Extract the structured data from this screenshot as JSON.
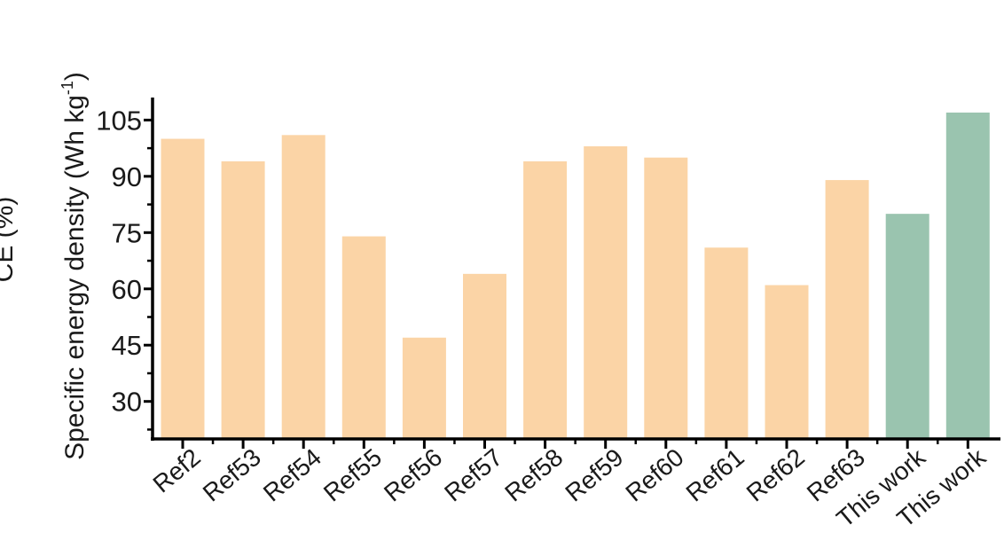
{
  "chart_data": {
    "type": "bar",
    "title": "",
    "xlabel": "",
    "ylabel": {
      "main": "Specific energy density (Wh kg",
      "sup": "-1",
      "close": ")"
    },
    "left_cut_label": "CE (%)",
    "categories": [
      "Ref2",
      "Ref53",
      "Ref54",
      "Ref55",
      "Ref56",
      "Ref57",
      "Ref58",
      "Ref59",
      "Ref60",
      "Ref61",
      "Ref62",
      "Ref63",
      "This work",
      "This work"
    ],
    "values": [
      100,
      94,
      101,
      74,
      47,
      64,
      94,
      98,
      95,
      71,
      61,
      89,
      80,
      107
    ],
    "highlight": [
      false,
      false,
      false,
      false,
      false,
      false,
      false,
      false,
      false,
      false,
      false,
      false,
      true,
      true
    ],
    "ylim": [
      20,
      111
    ],
    "yticks": [
      30,
      45,
      60,
      75,
      90,
      105
    ],
    "grid": false,
    "colors": {
      "reference": "#FBD4A6",
      "this_work": "#9AC4AF",
      "axis": "#000000"
    }
  }
}
